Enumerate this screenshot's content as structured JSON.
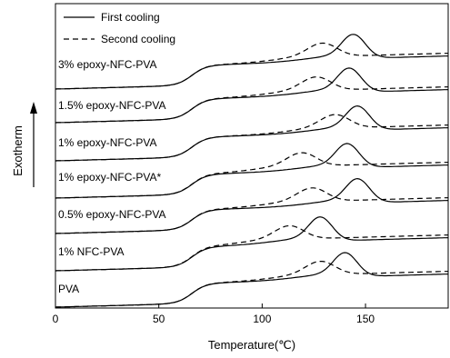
{
  "chart_data": {
    "type": "line",
    "title": "",
    "xlabel": "Temperature(℃)",
    "ylabel": "Exotherm",
    "xlim": [
      0,
      190
    ],
    "xticks": [
      0,
      50,
      100,
      150
    ],
    "grid": false,
    "legend_position": "top-right",
    "line_styles": {
      "first": "solid",
      "second": "dashed"
    },
    "colors": {
      "line": "#000000",
      "background": "#ffffff"
    },
    "series": [
      {
        "name": "First cooling"
      },
      {
        "name": "Second cooling"
      }
    ],
    "curves": [
      {
        "label": "3% epoxy-NFC-PVA",
        "first": {
          "peak_x": 144
        },
        "second": {
          "peak_x": 129
        }
      },
      {
        "label": "1.5% epoxy-NFC-PVA",
        "first": {
          "peak_x": 142
        },
        "second": {
          "peak_x": 126
        }
      },
      {
        "label": "1% epoxy-NFC-PVA",
        "first": {
          "peak_x": 146
        },
        "second": {
          "peak_x": 135
        }
      },
      {
        "label": "1% epoxy-NFC-PVA*",
        "first": {
          "peak_x": 141
        },
        "second": {
          "peak_x": 119
        }
      },
      {
        "label": "0.5% epoxy-NFC-PVA",
        "first": {
          "peak_x": 146
        },
        "second": {
          "peak_x": 124
        }
      },
      {
        "label": "1% NFC-PVA",
        "first": {
          "peak_x": 128
        },
        "second": {
          "peak_x": 113
        }
      },
      {
        "label": "PVA",
        "first": {
          "peak_x": 140
        },
        "second": {
          "peak_x": 128
        }
      }
    ]
  }
}
